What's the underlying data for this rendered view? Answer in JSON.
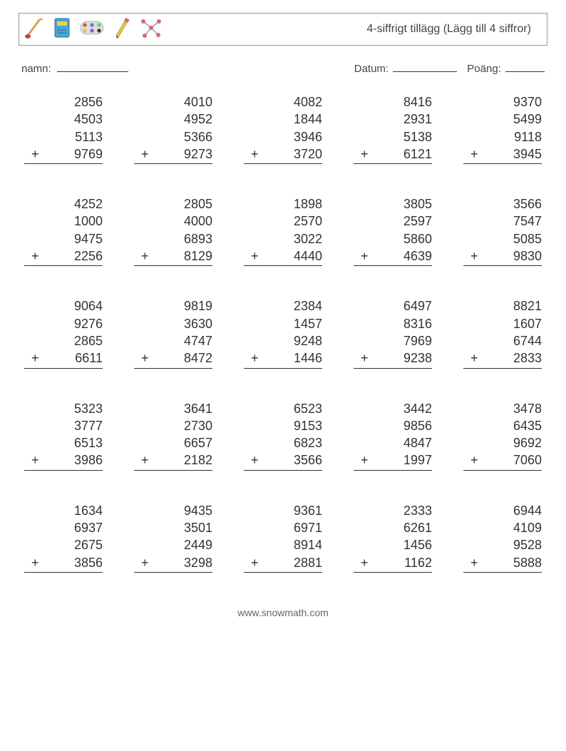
{
  "header": {
    "title": "4-siffrigt tillägg (Lägg till 4 siffror)",
    "icons": [
      {
        "name": "paintbrush-icon",
        "stroke": "#d9a24a",
        "tip": "#c04848"
      },
      {
        "name": "book-icon",
        "body": "#4aa3d9",
        "accent": "#e6d34a",
        "line": "#2f6f94"
      },
      {
        "name": "palette-icon",
        "body": "#dddddd",
        "dots": [
          "#d94a4a",
          "#4a82d9",
          "#4ad96a",
          "#e6c84a",
          "#9a4ad9",
          "#333333"
        ]
      },
      {
        "name": "pencil-icon",
        "body": "#e6c84a",
        "tip": "#c08a3a",
        "eraser": "#d96a6a"
      },
      {
        "name": "molecule-icon",
        "line": "#8aa0c8",
        "dots": [
          "#d96a6a",
          "#d96a6a",
          "#d96a6a",
          "#d96a6a",
          "#d96a6a"
        ]
      }
    ]
  },
  "labels": {
    "name": "namn:",
    "date": "Datum:",
    "score": "Poäng:"
  },
  "operator": "+",
  "problems": [
    [
      {
        "nums": [
          2856,
          4503,
          5113
        ],
        "last": 9769
      },
      {
        "nums": [
          4010,
          4952,
          5366
        ],
        "last": 9273
      },
      {
        "nums": [
          4082,
          1844,
          3946
        ],
        "last": 3720
      },
      {
        "nums": [
          8416,
          2931,
          5138
        ],
        "last": 6121
      },
      {
        "nums": [
          9370,
          5499,
          9118
        ],
        "last": 3945
      }
    ],
    [
      {
        "nums": [
          4252,
          1000,
          9475
        ],
        "last": 2256
      },
      {
        "nums": [
          2805,
          4000,
          6893
        ],
        "last": 8129
      },
      {
        "nums": [
          1898,
          2570,
          3022
        ],
        "last": 4440
      },
      {
        "nums": [
          3805,
          2597,
          5860
        ],
        "last": 4639
      },
      {
        "nums": [
          3566,
          7547,
          5085
        ],
        "last": 9830
      }
    ],
    [
      {
        "nums": [
          9064,
          9276,
          2865
        ],
        "last": 6611
      },
      {
        "nums": [
          9819,
          3630,
          4747
        ],
        "last": 8472
      },
      {
        "nums": [
          2384,
          1457,
          9248
        ],
        "last": 1446
      },
      {
        "nums": [
          6497,
          8316,
          7969
        ],
        "last": 9238
      },
      {
        "nums": [
          8821,
          1607,
          6744
        ],
        "last": 2833
      }
    ],
    [
      {
        "nums": [
          5323,
          3777,
          6513
        ],
        "last": 3986
      },
      {
        "nums": [
          3641,
          2730,
          6657
        ],
        "last": 2182
      },
      {
        "nums": [
          6523,
          9153,
          6823
        ],
        "last": 3566
      },
      {
        "nums": [
          3442,
          9856,
          4847
        ],
        "last": 1997
      },
      {
        "nums": [
          3478,
          6435,
          9692
        ],
        "last": 7060
      }
    ],
    [
      {
        "nums": [
          1634,
          6937,
          2675
        ],
        "last": 3856
      },
      {
        "nums": [
          9435,
          3501,
          2449
        ],
        "last": 3298
      },
      {
        "nums": [
          9361,
          6971,
          8914
        ],
        "last": 2881
      },
      {
        "nums": [
          2333,
          6261,
          1456
        ],
        "last": 1162
      },
      {
        "nums": [
          6944,
          4109,
          9528
        ],
        "last": 5888
      }
    ]
  ],
  "footer": "www.snowmath.com"
}
